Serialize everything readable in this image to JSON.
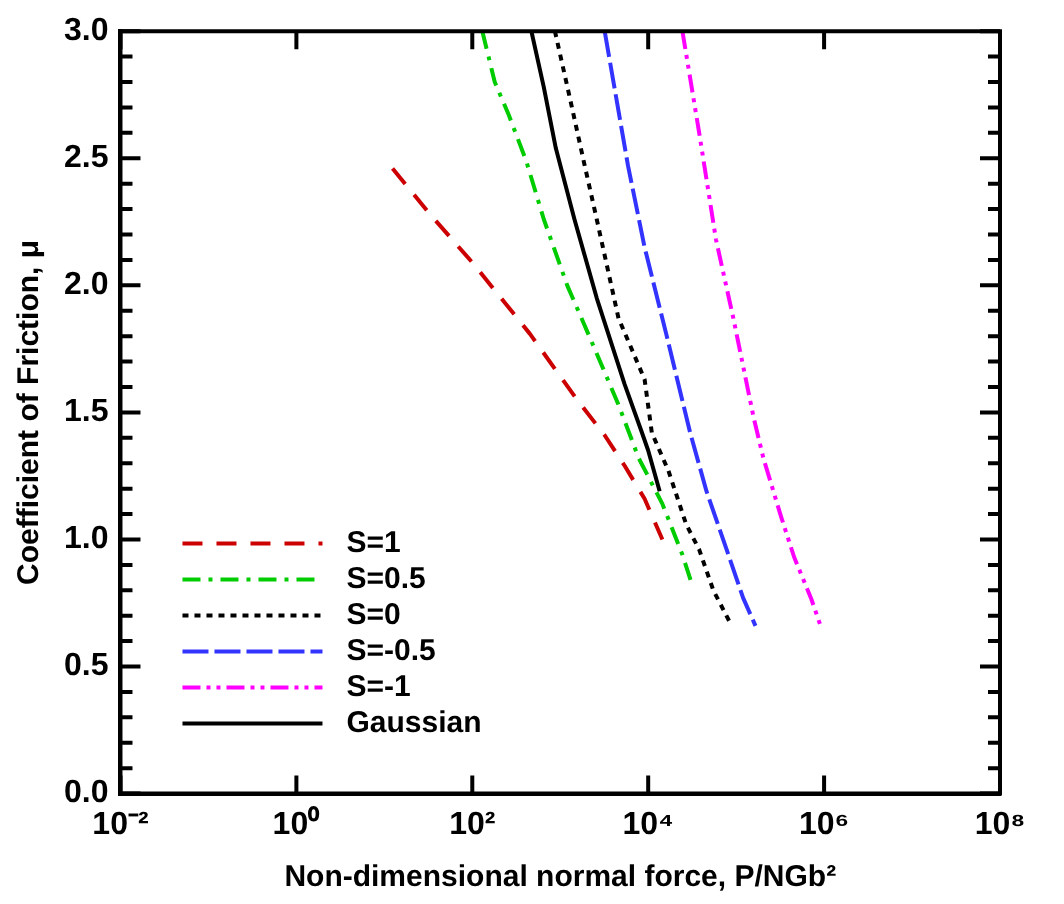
{
  "chart_data": {
    "type": "line",
    "xlabel": "Non-dimensional normal force, P/NGb²",
    "ylabel": "Coefficient of Friction, μ",
    "log": "x",
    "xlim": [
      0.01,
      100000000
    ],
    "ylim": [
      0,
      3
    ],
    "xticks": [
      {
        "value": 0.01,
        "label": "10⁻²"
      },
      {
        "value": 1,
        "label": "10⁰"
      },
      {
        "value": 100,
        "label": "10²"
      },
      {
        "value": 10000,
        "label": "10⁴"
      },
      {
        "value": 1000000,
        "label": "10⁶"
      },
      {
        "value": 100000000,
        "label": "10⁸"
      }
    ],
    "yticks": [
      {
        "value": 0,
        "label": "0.0"
      },
      {
        "value": 0.1,
        "label": null
      },
      {
        "value": 0.2,
        "label": null
      },
      {
        "value": 0.3,
        "label": null
      },
      {
        "value": 0.4,
        "label": null
      },
      {
        "value": 0.5,
        "label": "0.5"
      },
      {
        "value": 0.6,
        "label": null
      },
      {
        "value": 0.7,
        "label": null
      },
      {
        "value": 0.8,
        "label": null
      },
      {
        "value": 0.9,
        "label": null
      },
      {
        "value": 1,
        "label": "1.0"
      },
      {
        "value": 1.1,
        "label": null
      },
      {
        "value": 1.2,
        "label": null
      },
      {
        "value": 1.3,
        "label": null
      },
      {
        "value": 1.4,
        "label": null
      },
      {
        "value": 1.5,
        "label": "1.5"
      },
      {
        "value": 1.6,
        "label": null
      },
      {
        "value": 1.7,
        "label": null
      },
      {
        "value": 1.8,
        "label": null
      },
      {
        "value": 1.9,
        "label": null
      },
      {
        "value": 2,
        "label": "2.0"
      },
      {
        "value": 2.1,
        "label": null
      },
      {
        "value": 2.2,
        "label": null
      },
      {
        "value": 2.3,
        "label": null
      },
      {
        "value": 2.4,
        "label": null
      },
      {
        "value": 2.5,
        "label": "2.5"
      },
      {
        "value": 2.6,
        "label": null
      },
      {
        "value": 2.7,
        "label": null
      },
      {
        "value": 2.8,
        "label": null
      },
      {
        "value": 2.9,
        "label": null
      },
      {
        "value": 3,
        "label": "3.0"
      }
    ],
    "grid": false,
    "legend": "bottom left",
    "marker": "none",
    "series": [
      {
        "name": "S=1",
        "color": "#cc0000",
        "line_style": "dashed",
        "x": [
          12.4,
          33,
          100,
          450,
          1550,
          3200,
          5400,
          9100,
          14500
        ],
        "values": [
          2.46,
          2.28,
          2.09,
          1.81,
          1.55,
          1.41,
          1.29,
          1.16,
          1.0
        ]
      },
      {
        "name": "S=0.5",
        "color": "#00cc00",
        "line_style": "dashdot",
        "x": [
          130,
          180,
          260,
          410,
          650,
          1200,
          2200,
          4600,
          7800,
          14500,
          24500,
          31000
        ],
        "values": [
          3.0,
          2.8,
          2.67,
          2.49,
          2.26,
          2.0,
          1.79,
          1.53,
          1.32,
          1.14,
          0.94,
          0.83
        ]
      },
      {
        "name": "S=0",
        "color": "#000000",
        "line_style": "dotted",
        "x": [
          870,
          1300,
          1900,
          2600,
          4600,
          9100,
          11000,
          17000,
          27000,
          38000,
          55000,
          89000
        ],
        "values": [
          3.0,
          2.73,
          2.47,
          2.26,
          1.87,
          1.63,
          1.42,
          1.27,
          1.06,
          0.96,
          0.8,
          0.66
        ]
      },
      {
        "name": "S=-0.5",
        "color": "#3333ff",
        "line_style": "longdash",
        "x": [
          3200,
          5900,
          9100,
          16000,
          30000,
          46000,
          78000,
          120000,
          166000
        ],
        "values": [
          3.0,
          2.47,
          2.15,
          1.81,
          1.42,
          1.19,
          0.96,
          0.77,
          0.66
        ]
      },
      {
        "name": "S=-1",
        "color": "#ff00ff",
        "line_style": "dashdotdot",
        "x": [
          24500,
          38000,
          59000,
          93000,
          158000,
          204000,
          324000,
          457000,
          708000,
          912000
        ],
        "values": [
          3.0,
          2.6,
          2.18,
          1.87,
          1.48,
          1.32,
          1.09,
          0.93,
          0.77,
          0.66
        ]
      },
      {
        "name": "Gaussian",
        "color": "#000000",
        "line_style": "solid",
        "x": [
          470,
          650,
          890,
          1450,
          2600,
          5400,
          8500,
          10000,
          13500
        ],
        "values": [
          3.0,
          2.78,
          2.54,
          2.26,
          1.95,
          1.61,
          1.42,
          1.35,
          1.19
        ]
      }
    ]
  }
}
